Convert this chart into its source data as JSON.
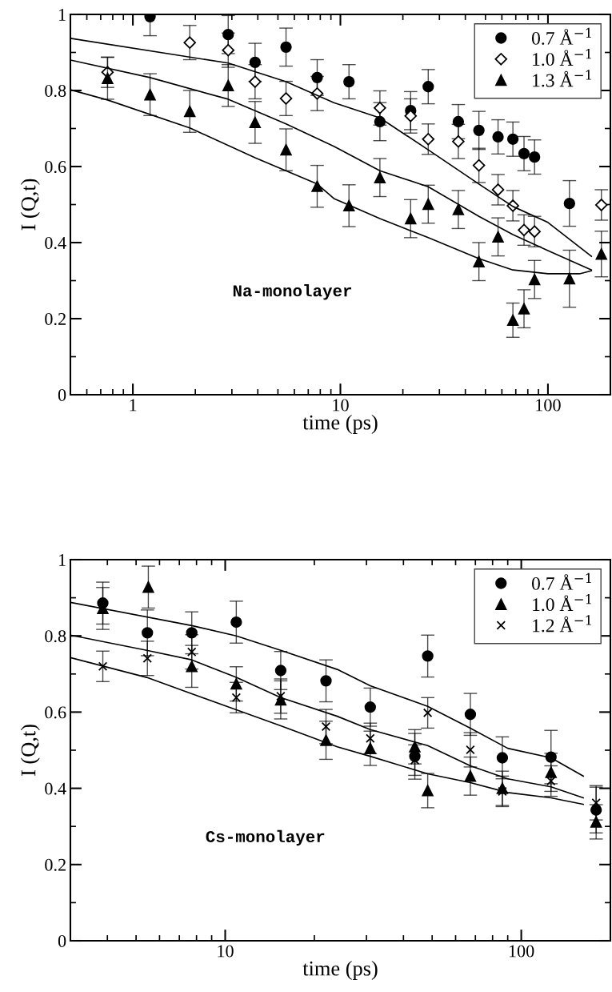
{
  "chart_data": [
    {
      "type": "scatter",
      "xlabel": "time (ps)",
      "ylabel": "I (Q,t)",
      "log": "x",
      "xlim": [
        0.5,
        200
      ],
      "ylim": [
        0,
        1
      ],
      "xticks": [
        {
          "value": 0.6,
          "label": null
        },
        {
          "value": 0.7,
          "label": null
        },
        {
          "value": 0.8,
          "label": null
        },
        {
          "value": 0.9,
          "label": null
        },
        1,
        {
          "value": 2,
          "label": null
        },
        {
          "value": 3,
          "label": null
        },
        {
          "value": 4,
          "label": null
        },
        {
          "value": 5,
          "label": null
        },
        {
          "value": 6,
          "label": null
        },
        {
          "value": 7,
          "label": null
        },
        {
          "value": 8,
          "label": null
        },
        {
          "value": 9,
          "label": null
        },
        10,
        {
          "value": 20,
          "label": null
        },
        {
          "value": 30,
          "label": null
        },
        {
          "value": 40,
          "label": null
        },
        {
          "value": 50,
          "label": null
        },
        {
          "value": 60,
          "label": null
        },
        {
          "value": 70,
          "label": null
        },
        {
          "value": 80,
          "label": null
        },
        {
          "value": 90,
          "label": null
        },
        100
      ],
      "yticks": [
        0,
        {
          "value": 0.1,
          "label": null
        },
        0.2,
        {
          "value": 0.3,
          "label": null
        },
        0.4,
        {
          "value": 0.5,
          "label": null
        },
        0.6,
        {
          "value": 0.7,
          "label": null
        },
        0.8,
        {
          "value": 0.9,
          "label": null
        },
        1
      ],
      "grid": false,
      "legend": "top right",
      "annotations": [
        "Na-monolayer"
      ],
      "series": [
        {
          "name": "0.7 Å$^{−1}$",
          "color": "#000000",
          "marker": "circle",
          "x": [
            1.21,
            2.88,
            3.88,
            5.47,
            7.73,
            11.0,
            15.5,
            21.8,
            26.5,
            37.0,
            46.5,
            57.5,
            67.8,
            76.7,
            86.2,
            127
          ],
          "values": [
            0.994,
            0.947,
            0.874,
            0.914,
            0.834,
            0.823,
            0.718,
            0.747,
            0.81,
            0.718,
            0.695,
            0.678,
            0.672,
            0.634,
            0.625,
            0.503
          ],
          "errors": [
            0.05,
            0.05,
            0.05,
            0.05,
            0.047,
            0.045,
            0.05,
            0.05,
            0.045,
            0.045,
            0.05,
            0.045,
            0.045,
            0.045,
            0.045,
            0.06
          ]
        },
        {
          "name": "1.0 Å$^{−1}$",
          "color": "#000000",
          "marker": "diamond",
          "x": [
            0.755,
            1.88,
            2.88,
            3.88,
            5.47,
            7.73,
            15.5,
            21.8,
            26.5,
            37.0,
            46.5,
            57.5,
            67.8,
            76.7,
            86.2,
            181
          ],
          "values": [
            0.848,
            0.926,
            0.906,
            0.823,
            0.779,
            0.792,
            0.754,
            0.733,
            0.672,
            0.666,
            0.603,
            0.539,
            0.497,
            0.433,
            0.429,
            0.499
          ],
          "errors": [
            0.04,
            0.045,
            0.045,
            0.045,
            0.045,
            0.045,
            0.045,
            0.045,
            0.04,
            0.045,
            0.045,
            0.04,
            0.04,
            0.04,
            0.04,
            0.04
          ]
        },
        {
          "name": "1.3 Å$^{−1}$",
          "color": "#000000",
          "marker": "triangle",
          "x": [
            0.755,
            1.21,
            1.88,
            2.88,
            3.88,
            5.47,
            7.73,
            11.0,
            15.5,
            21.8,
            26.5,
            37.0,
            46.5,
            57.5,
            67.8,
            76.7,
            86.2,
            127,
            181
          ],
          "values": [
            0.832,
            0.789,
            0.745,
            0.813,
            0.716,
            0.644,
            0.548,
            0.497,
            0.571,
            0.463,
            0.501,
            0.487,
            0.35,
            0.415,
            0.196,
            0.226,
            0.303,
            0.305,
            0.37
          ],
          "errors": [
            0.055,
            0.055,
            0.055,
            0.055,
            0.055,
            0.055,
            0.055,
            0.055,
            0.05,
            0.05,
            0.05,
            0.05,
            0.05,
            0.05,
            0.045,
            0.05,
            0.05,
            0.075,
            0.06
          ]
        },
        {
          "type": "line",
          "color": "#000000",
          "marker": "none",
          "x": [
            0.5,
            2.88,
            5.47,
            9.3,
            15.5,
            26.5,
            46.5,
            67.8,
            100,
            162
          ],
          "values": [
            0.937,
            0.872,
            0.823,
            0.768,
            0.728,
            0.644,
            0.554,
            0.495,
            0.453,
            0.364
          ]
        },
        {
          "type": "line",
          "color": "#000000",
          "marker": "none",
          "x": [
            0.5,
            1.21,
            2.88,
            5.47,
            9.3,
            15.5,
            26.5,
            46.5,
            67.8,
            100,
            162
          ],
          "values": [
            0.88,
            0.834,
            0.777,
            0.712,
            0.653,
            0.589,
            0.547,
            0.469,
            0.421,
            0.379,
            0.328
          ]
        },
        {
          "type": "line",
          "color": "#000000",
          "marker": "none",
          "x": [
            0.5,
            0.755,
            1.89,
            3.88,
            7.73,
            9.3,
            15.5,
            26.5,
            46.5,
            67.8,
            100,
            142,
            162
          ],
          "values": [
            0.802,
            0.775,
            0.701,
            0.623,
            0.554,
            0.516,
            0.463,
            0.413,
            0.358,
            0.328,
            0.318,
            0.318,
            0.326
          ]
        }
      ]
    },
    {
      "type": "scatter",
      "xlabel": "time (ps)",
      "ylabel": "I (Q,t)",
      "log": "x",
      "xlim": [
        3,
        200
      ],
      "ylim": [
        0,
        1
      ],
      "xticks": [
        {
          "value": 4,
          "label": null
        },
        {
          "value": 5,
          "label": null
        },
        {
          "value": 6,
          "label": null
        },
        {
          "value": 7,
          "label": null
        },
        {
          "value": 8,
          "label": null
        },
        {
          "value": 9,
          "label": null
        },
        10,
        {
          "value": 20,
          "label": null
        },
        {
          "value": 30,
          "label": null
        },
        {
          "value": 40,
          "label": null
        },
        {
          "value": 50,
          "label": null
        },
        {
          "value": 60,
          "label": null
        },
        {
          "value": 70,
          "label": null
        },
        {
          "value": 80,
          "label": null
        },
        {
          "value": 90,
          "label": null
        },
        100
      ],
      "yticks": [
        0,
        {
          "value": 0.1,
          "label": null
        },
        0.2,
        {
          "value": 0.3,
          "label": null
        },
        0.4,
        {
          "value": 0.5,
          "label": null
        },
        0.6,
        {
          "value": 0.7,
          "label": null
        },
        0.8,
        {
          "value": 0.9,
          "label": null
        },
        1
      ],
      "grid": false,
      "legend": "top right",
      "annotations": [
        "Cs-monolayer"
      ],
      "series": [
        {
          "name": "0.7 Å$^{−1}$",
          "color": "#000000",
          "marker": "circle",
          "x": [
            3.86,
            5.46,
            7.71,
            10.9,
            15.4,
            21.9,
            30.9,
            43.7,
            48.3,
            67.3,
            86.3,
            126,
            179
          ],
          "values": [
            0.886,
            0.808,
            0.808,
            0.836,
            0.709,
            0.682,
            0.613,
            0.484,
            0.747,
            0.594,
            0.48,
            0.482,
            0.343
          ],
          "errors": [
            0.055,
            0.06,
            0.055,
            0.055,
            0.05,
            0.055,
            0.05,
            0.06,
            0.055,
            0.055,
            0.055,
            0.07,
            0.06
          ]
        },
        {
          "name": "1.0 Å$^{−1}$",
          "color": "#000000",
          "marker": "triangle",
          "x": [
            3.86,
            5.5,
            7.71,
            10.9,
            15.4,
            21.9,
            30.9,
            43.7,
            48.3,
            67.3,
            86.3,
            126,
            179
          ],
          "values": [
            0.872,
            0.928,
            0.72,
            0.674,
            0.632,
            0.526,
            0.505,
            0.509,
            0.394,
            0.432,
            0.4,
            0.442,
            0.312
          ],
          "errors": [
            0.055,
            0.055,
            0.055,
            0.045,
            0.05,
            0.05,
            0.045,
            0.045,
            0.045,
            0.05,
            0.045,
            0.05,
            0.045
          ]
        },
        {
          "name": "1.2 Å$^{−1}$",
          "color": "#000000",
          "marker": "cross",
          "x": [
            3.86,
            5.46,
            7.71,
            10.9,
            15.4,
            21.9,
            30.9,
            43.7,
            48.3,
            67.3,
            86.3,
            126,
            179
          ],
          "values": [
            0.72,
            0.741,
            0.758,
            0.638,
            0.642,
            0.562,
            0.531,
            0.474,
            0.598,
            0.501,
            0.392,
            0.419,
            0.362
          ],
          "errors": [
            0.04,
            0.045,
            0.045,
            0.04,
            0.045,
            0.045,
            0.04,
            0.04,
            0.04,
            0.045,
            0.04,
            0.04,
            0.045
          ]
        },
        {
          "type": "line",
          "color": "#000000",
          "marker": "none",
          "x": [
            3,
            7.71,
            10.9,
            15.4,
            23.9,
            30.9,
            48.3,
            67.3,
            90,
            126,
            162
          ],
          "values": [
            0.888,
            0.827,
            0.8,
            0.762,
            0.712,
            0.669,
            0.615,
            0.558,
            0.505,
            0.48,
            0.432
          ]
        },
        {
          "type": "line",
          "color": "#000000",
          "marker": "none",
          "x": [
            3,
            5.43,
            7.71,
            10.9,
            15.4,
            23.9,
            30.9,
            48.3,
            67.3,
            90,
            126,
            162
          ],
          "values": [
            0.802,
            0.762,
            0.737,
            0.691,
            0.638,
            0.589,
            0.554,
            0.512,
            0.459,
            0.425,
            0.404,
            0.375
          ]
        },
        {
          "type": "line",
          "color": "#000000",
          "marker": "none",
          "x": [
            3,
            5.43,
            7.71,
            10.9,
            15.4,
            23.9,
            30.9,
            48.3,
            67.3,
            90,
            126,
            162
          ],
          "values": [
            0.743,
            0.691,
            0.648,
            0.606,
            0.564,
            0.509,
            0.484,
            0.438,
            0.415,
            0.389,
            0.375,
            0.358
          ]
        }
      ]
    }
  ]
}
